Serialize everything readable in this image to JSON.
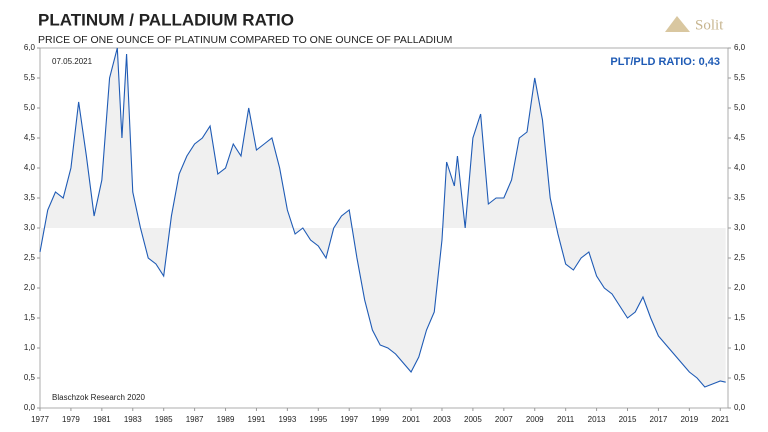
{
  "chart_data": {
    "type": "line",
    "title": "PLATINUM / PALLADIUM RATIO",
    "subtitle": "PRICE OF ONE OUNCE OF PLATINUM COMPARED TO ONE OUNCE OF PALLADIUM",
    "date_note": "07.05.2021",
    "ratio_note": "PLT/PLD RATIO: 0,43",
    "source": "Blaschzok Research 2020",
    "logo": "Solit",
    "x": [
      1977,
      1977.5,
      1978,
      1978.5,
      1979,
      1979.5,
      1980,
      1980.5,
      1981,
      1981.5,
      1982,
      1982.3,
      1982.6,
      1983,
      1983.5,
      1984,
      1984.5,
      1985,
      1985.5,
      1986,
      1986.5,
      1987,
      1987.5,
      1988,
      1988.5,
      1989,
      1989.5,
      1990,
      1990.5,
      1991,
      1991.5,
      1992,
      1992.5,
      1993,
      1993.5,
      1994,
      1994.5,
      1995,
      1995.5,
      1996,
      1996.5,
      1997,
      1997.5,
      1998,
      1998.5,
      1999,
      1999.5,
      2000,
      2000.5,
      2001,
      2001.5,
      2002,
      2002.5,
      2003,
      2003.3,
      2003.8,
      2004,
      2004.5,
      2005,
      2005.5,
      2006,
      2006.5,
      2007,
      2007.5,
      2008,
      2008.5,
      2009,
      2009.5,
      2010,
      2010.5,
      2011,
      2011.5,
      2012,
      2012.5,
      2013,
      2013.5,
      2014,
      2014.5,
      2015,
      2015.5,
      2016,
      2016.5,
      2017,
      2017.5,
      2018,
      2018.5,
      2019,
      2019.5,
      2020,
      2020.5,
      2021,
      2021.35
    ],
    "series": [
      {
        "name": "PLT/PLD",
        "color": "#1f5bb5",
        "values": [
          2.6,
          3.3,
          3.6,
          3.5,
          4.0,
          5.1,
          4.2,
          3.2,
          3.8,
          5.5,
          6.0,
          4.5,
          5.9,
          3.6,
          3.0,
          2.5,
          2.4,
          2.2,
          3.2,
          3.9,
          4.2,
          4.4,
          4.5,
          4.7,
          3.9,
          4.0,
          4.4,
          4.2,
          5.0,
          4.3,
          4.4,
          4.5,
          4.0,
          3.3,
          2.9,
          3.0,
          2.8,
          2.7,
          2.5,
          3.0,
          3.2,
          3.3,
          2.5,
          1.8,
          1.3,
          1.05,
          1.0,
          0.9,
          0.75,
          0.6,
          0.85,
          1.3,
          1.6,
          2.8,
          4.1,
          3.7,
          4.2,
          3.0,
          4.5,
          4.9,
          3.4,
          3.5,
          3.5,
          3.8,
          4.5,
          4.6,
          5.5,
          4.8,
          3.5,
          2.9,
          2.4,
          2.3,
          2.5,
          2.6,
          2.2,
          2.0,
          1.9,
          1.7,
          1.5,
          1.6,
          1.85,
          1.5,
          1.2,
          1.05,
          0.9,
          0.75,
          0.6,
          0.5,
          0.35,
          0.4,
          0.45,
          0.43
        ]
      }
    ],
    "shade_to": 3,
    "xlim": [
      1977,
      2021.5
    ],
    "xticks": [
      1977,
      1979,
      1981,
      1983,
      1985,
      1987,
      1989,
      1991,
      1993,
      1995,
      1997,
      1999,
      2001,
      2003,
      2005,
      2007,
      2009,
      2011,
      2013,
      2015,
      2017,
      2019,
      2021
    ],
    "ylim": [
      0,
      6
    ],
    "yticks": [
      {
        "value": 0,
        "label": "0,0"
      },
      {
        "value": 0.5,
        "label": "0,5"
      },
      {
        "value": 1,
        "label": "1,0"
      },
      {
        "value": 1.5,
        "label": "1,5"
      },
      {
        "value": 2,
        "label": "2,0"
      },
      {
        "value": 2.5,
        "label": "2,5"
      },
      {
        "value": 3,
        "label": "3,0"
      },
      {
        "value": 3.5,
        "label": "3,5"
      },
      {
        "value": 4,
        "label": "4,0"
      },
      {
        "value": 4.5,
        "label": "4,5"
      },
      {
        "value": 5,
        "label": "5,0"
      },
      {
        "value": 5.5,
        "label": "5,5"
      },
      {
        "value": 6,
        "label": "6,0"
      }
    ],
    "y2lim": [
      0,
      6
    ],
    "y2ticks": [
      {
        "value": 0,
        "label": "0,0"
      },
      {
        "value": 0.5,
        "label": "0,5"
      },
      {
        "value": 1,
        "label": "1,0"
      },
      {
        "value": 1.5,
        "label": "1,5"
      },
      {
        "value": 2,
        "label": "2,0"
      },
      {
        "value": 2.5,
        "label": "2,5"
      },
      {
        "value": 3,
        "label": "3,0"
      },
      {
        "value": 3.5,
        "label": "3,5"
      },
      {
        "value": 4,
        "label": "4,0"
      },
      {
        "value": 4.5,
        "label": "4,5"
      },
      {
        "value": 5,
        "label": "5,0"
      },
      {
        "value": 5.5,
        "label": "5,5"
      },
      {
        "value": 6,
        "label": "6,0"
      }
    ]
  }
}
